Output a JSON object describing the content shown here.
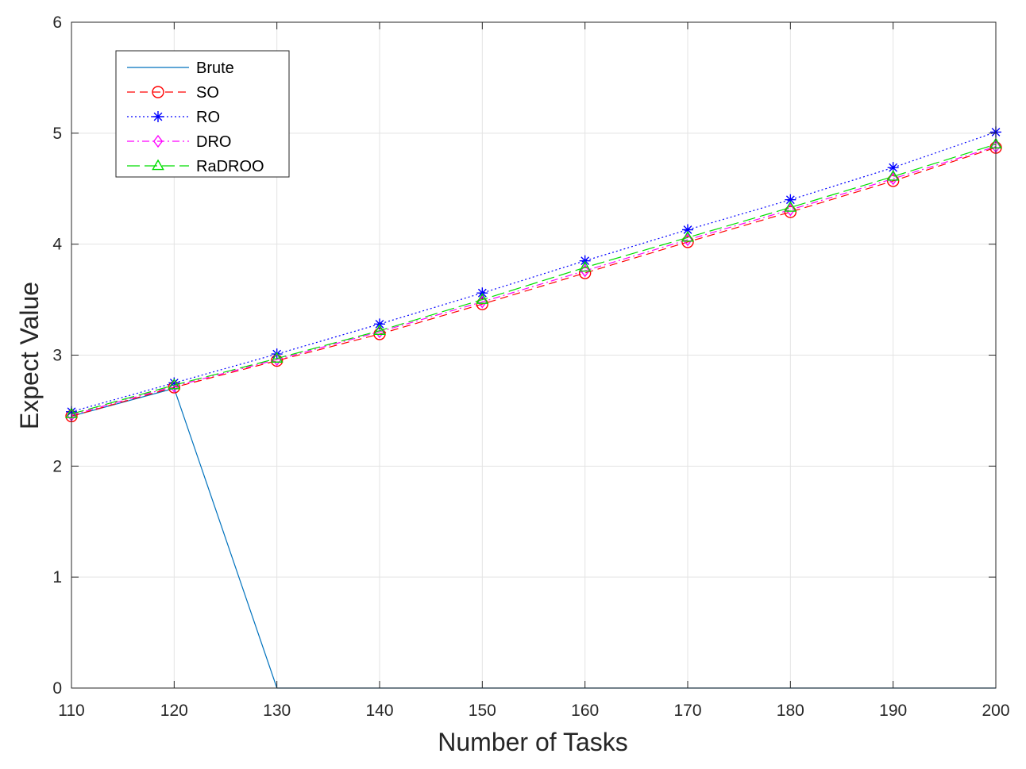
{
  "chart_data": {
    "type": "line",
    "xlabel": "Number of Tasks",
    "ylabel": "Expect Value",
    "xlim": [
      110,
      200
    ],
    "ylim": [
      0,
      6
    ],
    "xticks": [
      "110",
      "120",
      "130",
      "140",
      "150",
      "160",
      "170",
      "180",
      "190",
      "200"
    ],
    "yticks": [
      "0",
      "1",
      "2",
      "3",
      "4",
      "5",
      "6"
    ],
    "grid": true,
    "legend_position": "top-left",
    "x": [
      110,
      120,
      130,
      140,
      150,
      160,
      170,
      180,
      190,
      200
    ],
    "series": [
      {
        "name": "Brute",
        "color": "#0072BD",
        "dash": "solid",
        "marker": "none",
        "values": [
          2.45,
          2.7,
          0,
          0,
          0,
          0,
          0,
          0,
          0,
          0
        ]
      },
      {
        "name": "SO",
        "color": "#FF0000",
        "dash": "dashed",
        "marker": "circle",
        "values": [
          2.45,
          2.71,
          2.95,
          3.19,
          3.46,
          3.74,
          4.02,
          4.29,
          4.57,
          4.87
        ]
      },
      {
        "name": "RO",
        "color": "#0000FF",
        "dash": "dotted",
        "marker": "asterisk",
        "values": [
          2.49,
          2.75,
          3.01,
          3.28,
          3.56,
          3.85,
          4.13,
          4.4,
          4.69,
          5.01
        ]
      },
      {
        "name": "DRO",
        "color": "#FF00FF",
        "dash": "dashdot",
        "marker": "diamond",
        "values": [
          2.46,
          2.72,
          2.96,
          3.21,
          3.48,
          3.76,
          4.04,
          4.31,
          4.59,
          4.88
        ]
      },
      {
        "name": "RaDROO",
        "color": "#00DD00",
        "dash": "longdash",
        "marker": "triangle",
        "values": [
          2.47,
          2.73,
          2.97,
          3.22,
          3.5,
          3.79,
          4.06,
          4.33,
          4.61,
          4.9
        ]
      }
    ]
  }
}
